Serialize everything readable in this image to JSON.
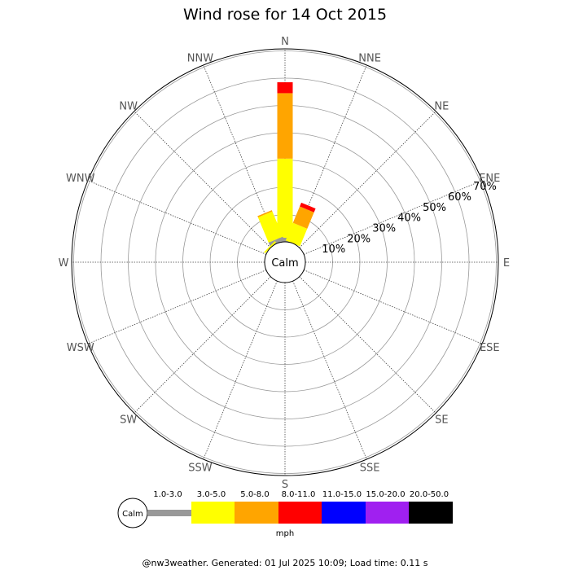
{
  "chart_data": {
    "type": "wind-rose",
    "title": "Wind rose for 14 Oct 2015",
    "directions": [
      "N",
      "NNE",
      "NE",
      "ENE",
      "E",
      "ESE",
      "SE",
      "SSE",
      "S",
      "SSW",
      "SW",
      "WSW",
      "W",
      "WNW",
      "NW",
      "NNW"
    ],
    "radial_ticks": [
      "10%",
      "20%",
      "30%",
      "40%",
      "50%",
      "60%",
      "70%"
    ],
    "radial_values": [
      10,
      20,
      30,
      40,
      50,
      60,
      70
    ],
    "calm_label": "Calm",
    "unit": "mph",
    "speed_bins": [
      {
        "label": "1.0-3.0",
        "color": "#999999"
      },
      {
        "label": "3.0-5.0",
        "color": "#ffff00"
      },
      {
        "label": "5.0-8.0",
        "color": "#ffa500"
      },
      {
        "label": "8.0-11.0",
        "color": "#ff0000"
      },
      {
        "label": "11.0-15.0",
        "color": "#0000ff"
      },
      {
        "label": "15.0-20.0",
        "color": "#a020f0"
      },
      {
        "label": "20.0-50.0",
        "color": "#000000"
      }
    ],
    "series": [
      {
        "direction": "N",
        "values": [
          1.5,
          29,
          24,
          4,
          0,
          0,
          0
        ]
      },
      {
        "direction": "NNE",
        "values": [
          0,
          7,
          6.5,
          1.5,
          0,
          0,
          0
        ]
      },
      {
        "direction": "NNW",
        "values": [
          1.5,
          10,
          0.5,
          0,
          0,
          0,
          0
        ]
      },
      {
        "direction": "NW",
        "values": [
          0,
          0.6,
          0,
          0,
          0,
          0,
          0
        ]
      }
    ],
    "footer": "@nw3weather. Generated: 01 Jul 2025 10:09; Load time: 0.11 s"
  }
}
